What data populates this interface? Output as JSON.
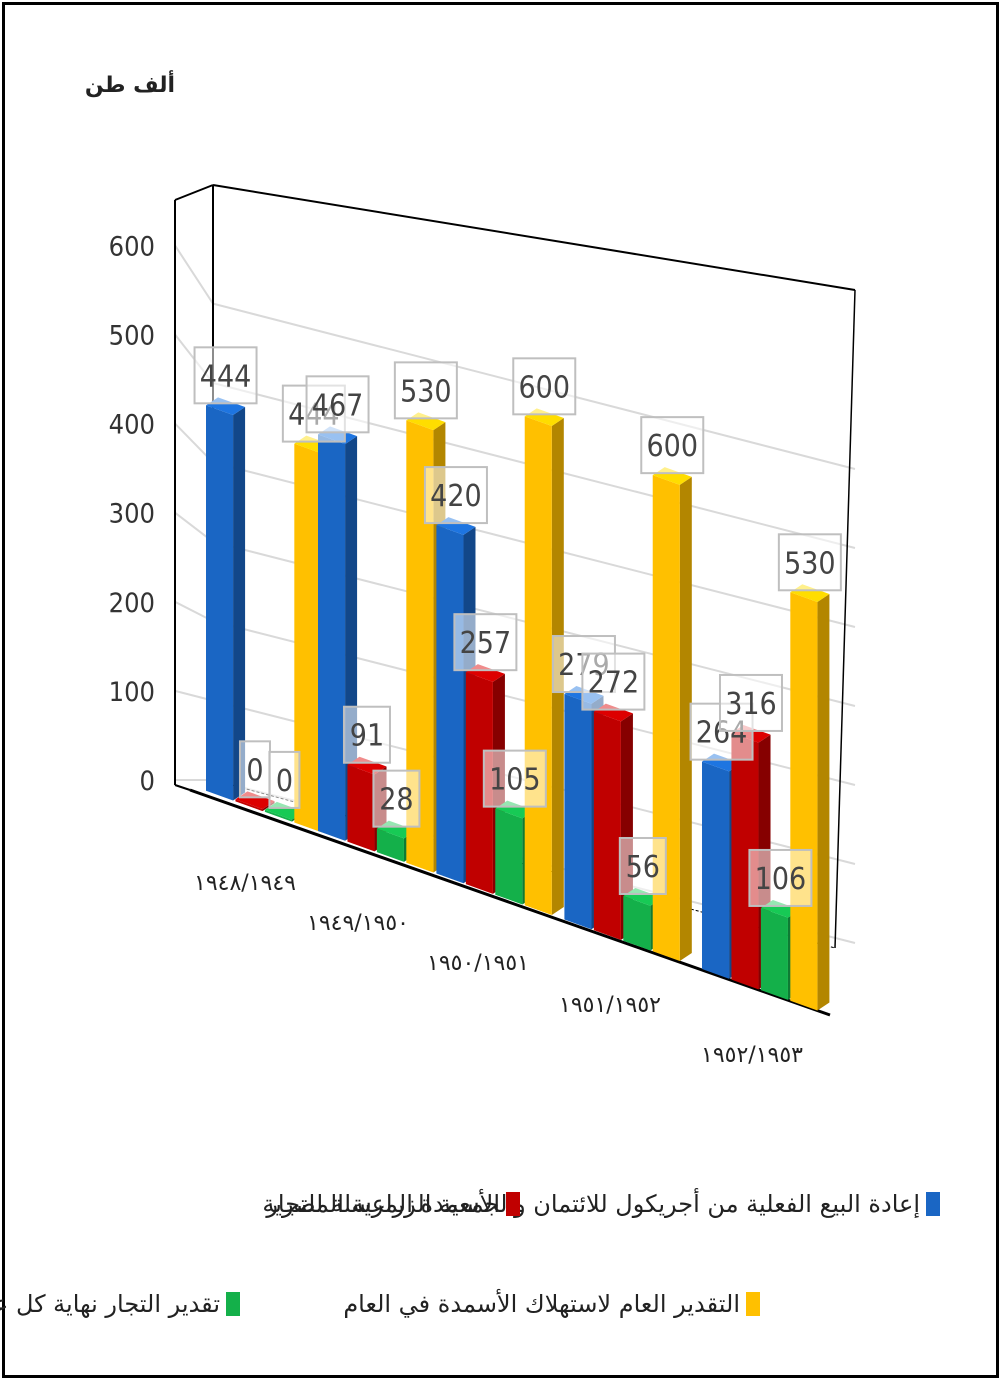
{
  "chart_data": {
    "type": "bar",
    "unit_label": "ألف طن",
    "categories": [
      "١٩٤٨/١٩٤٩",
      "١٩٤٩/١٩٥٠",
      "١٩٥٠/١٩٥١",
      "١٩٥١/١٩٥٢",
      "١٩٥٢/١٩٥٣"
    ],
    "ylim": [
      0,
      600
    ],
    "yticks": [
      0,
      100,
      200,
      300,
      400,
      500,
      600
    ],
    "grid": true,
    "legend_position": "bottom",
    "series": [
      {
        "name": "إعادة البيع الفعلية من أجريكول للائتمان والجمعية الزراعية المصرية",
        "color": "#1a66c4",
        "values": [
          444,
          467,
          420,
          279,
          264
        ]
      },
      {
        "name": "الأسمدة المرسلة للتجار",
        "color": "#c00000",
        "values": [
          0,
          91,
          257,
          272,
          316
        ]
      },
      {
        "name": "تقدير التجار نهاية كل عام",
        "color": "#14b04a",
        "values": [
          0,
          28,
          105,
          56,
          106
        ]
      },
      {
        "name": "التقدير العام لاستهلاك الأسمدة في العام",
        "color": "#ffc000",
        "values": [
          444,
          530,
          600,
          600,
          530
        ]
      }
    ]
  }
}
